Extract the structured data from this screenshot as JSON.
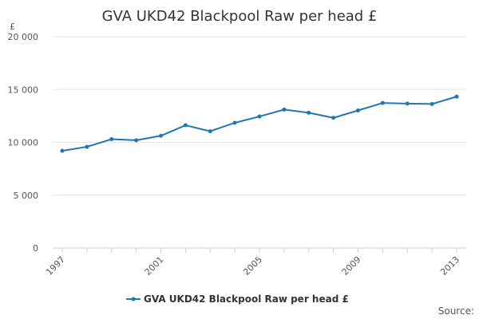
{
  "chart_data": {
    "type": "line",
    "title": "GVA UKD42 Blackpool Raw per head £",
    "ylabel": "£",
    "xlabel": "",
    "x": [
      1997,
      1998,
      1999,
      2000,
      2001,
      2002,
      2003,
      2004,
      2005,
      2006,
      2007,
      2008,
      2009,
      2010,
      2011,
      2012,
      2013
    ],
    "x_tick_labels": [
      "1997",
      "2001",
      "2005",
      "2009",
      "2013"
    ],
    "y_tick_values": [
      0,
      5000,
      10000,
      15000,
      20000
    ],
    "y_tick_labels": [
      "0",
      "5 000",
      "10 000",
      "15 000",
      "20 000"
    ],
    "ylim": [
      0,
      20000
    ],
    "xlim": [
      1997,
      2013
    ],
    "grid": true,
    "legend_position": "bottom",
    "series": [
      {
        "name": "GVA UKD42 Blackpool Raw per head £",
        "color": "#1f77b4",
        "values": [
          9200,
          9580,
          10300,
          10200,
          10620,
          11620,
          11050,
          11850,
          12450,
          13100,
          12800,
          12320,
          13020,
          13730,
          13670,
          13630,
          14330
        ]
      }
    ],
    "source_label": "Source:"
  }
}
